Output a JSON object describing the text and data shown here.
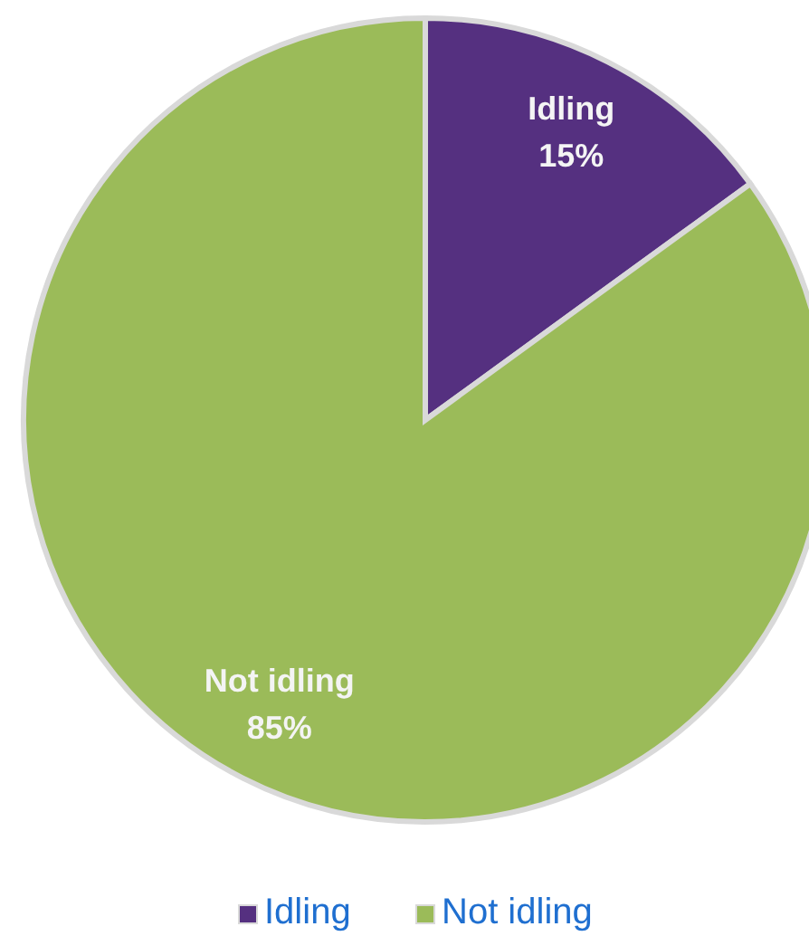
{
  "chart_data": {
    "type": "pie",
    "categories": [
      "Idling",
      "Not idling"
    ],
    "values": [
      15,
      85
    ],
    "value_labels": [
      "15%",
      "85%"
    ],
    "colors": [
      "#553080",
      "#9bbb59"
    ],
    "legend": "bottom"
  }
}
